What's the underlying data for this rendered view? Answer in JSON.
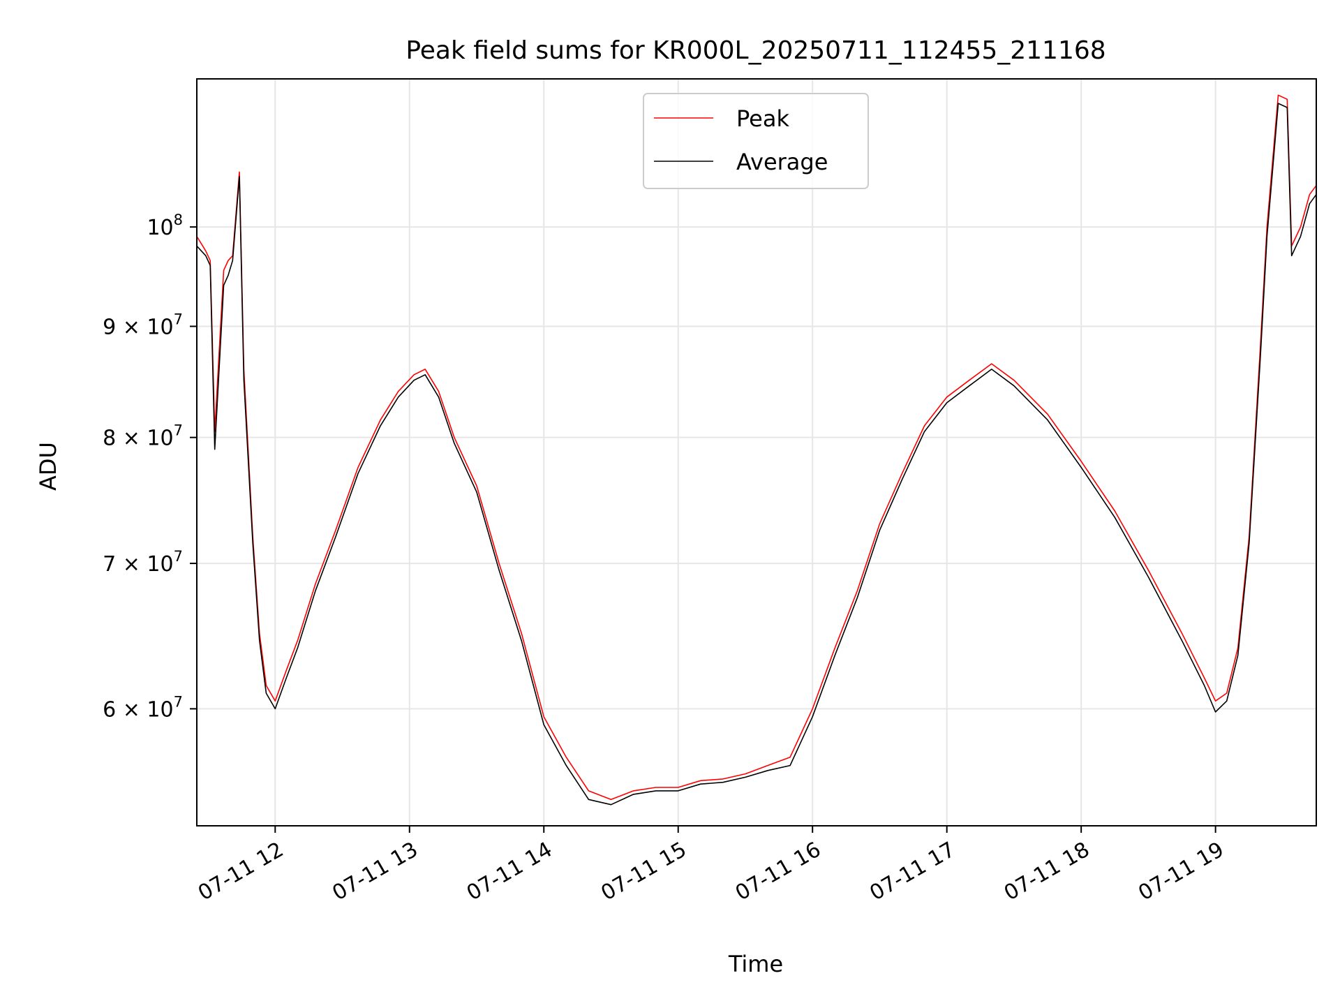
{
  "chart_data": {
    "type": "line",
    "title": "Peak field sums for KR000L_20250711_112455_211168",
    "xlabel": "Time",
    "ylabel": "ADU",
    "yscale": "log",
    "xlim": [
      "2025-07-11 11:25",
      "2025-07-11 19:45"
    ],
    "ylim": [
      53000000,
      117000000
    ],
    "grid": true,
    "legend": "upper center",
    "x_ticks": [
      {
        "t": "2025-07-11 12:00",
        "label": "07-11 12"
      },
      {
        "t": "2025-07-11 13:00",
        "label": "07-11 13"
      },
      {
        "t": "2025-07-11 14:00",
        "label": "07-11 14"
      },
      {
        "t": "2025-07-11 15:00",
        "label": "07-11 15"
      },
      {
        "t": "2025-07-11 16:00",
        "label": "07-11 16"
      },
      {
        "t": "2025-07-11 17:00",
        "label": "07-11 17"
      },
      {
        "t": "2025-07-11 18:00",
        "label": "07-11 18"
      },
      {
        "t": "2025-07-11 19:00",
        "label": "07-11 19"
      }
    ],
    "y_ticks": [
      {
        "value": 60000000,
        "mant": "6",
        "exp": "7"
      },
      {
        "value": 70000000,
        "mant": "7",
        "exp": "7"
      },
      {
        "value": 80000000,
        "mant": "8",
        "exp": "7"
      },
      {
        "value": 90000000,
        "mant": "9",
        "exp": "7"
      },
      {
        "value": 100000000,
        "mant": "",
        "exp": "8"
      }
    ],
    "series": [
      {
        "name": "Peak",
        "color": "#ff0000",
        "x": [
          "2025-07-11 11:25",
          "2025-07-11 11:29",
          "2025-07-11 11:31",
          "2025-07-11 11:33",
          "2025-07-11 11:37",
          "2025-07-11 11:39",
          "2025-07-11 11:41",
          "2025-07-11 11:44",
          "2025-07-11 11:46",
          "2025-07-11 11:50",
          "2025-07-11 11:53",
          "2025-07-11 11:56",
          "2025-07-11 12:00",
          "2025-07-11 12:05",
          "2025-07-11 12:10",
          "2025-07-11 12:18",
          "2025-07-11 12:27",
          "2025-07-11 12:37",
          "2025-07-11 12:47",
          "2025-07-11 12:55",
          "2025-07-11 13:02",
          "2025-07-11 13:07",
          "2025-07-11 13:13",
          "2025-07-11 13:20",
          "2025-07-11 13:30",
          "2025-07-11 13:40",
          "2025-07-11 13:50",
          "2025-07-11 14:00",
          "2025-07-11 14:10",
          "2025-07-11 14:20",
          "2025-07-11 14:30",
          "2025-07-11 14:40",
          "2025-07-11 14:50",
          "2025-07-11 15:00",
          "2025-07-11 15:10",
          "2025-07-11 15:20",
          "2025-07-11 15:30",
          "2025-07-11 15:40",
          "2025-07-11 15:50",
          "2025-07-11 16:00",
          "2025-07-11 16:10",
          "2025-07-11 16:20",
          "2025-07-11 16:30",
          "2025-07-11 16:40",
          "2025-07-11 16:50",
          "2025-07-11 17:00",
          "2025-07-11 17:10",
          "2025-07-11 17:20",
          "2025-07-11 17:30",
          "2025-07-11 17:45",
          "2025-07-11 18:00",
          "2025-07-11 18:15",
          "2025-07-11 18:30",
          "2025-07-11 18:45",
          "2025-07-11 18:55",
          "2025-07-11 19:00",
          "2025-07-11 19:05",
          "2025-07-11 19:10",
          "2025-07-11 19:15",
          "2025-07-11 19:20",
          "2025-07-11 19:23",
          "2025-07-11 19:28",
          "2025-07-11 19:32",
          "2025-07-11 19:34",
          "2025-07-11 19:38",
          "2025-07-11 19:42",
          "2025-07-11 19:45"
        ],
        "values": [
          99000000,
          97500000,
          96500000,
          80500000,
          95500000,
          96500000,
          97000000,
          106000000,
          86000000,
          72000000,
          65000000,
          61500000,
          60500000,
          62500000,
          64500000,
          68500000,
          72500000,
          77500000,
          81500000,
          84000000,
          85500000,
          86000000,
          84000000,
          80000000,
          76000000,
          70000000,
          65000000,
          59500000,
          57000000,
          55000000,
          54500000,
          55000000,
          55200000,
          55200000,
          55600000,
          55700000,
          56000000,
          56500000,
          57000000,
          60000000,
          64000000,
          68000000,
          73000000,
          77000000,
          81000000,
          83500000,
          85000000,
          86500000,
          85000000,
          82000000,
          78000000,
          74000000,
          69500000,
          65000000,
          62000000,
          60500000,
          61000000,
          64000000,
          72000000,
          88000000,
          100000000,
          115000000,
          114500000,
          98000000,
          100000000,
          103500000,
          104500000
        ]
      },
      {
        "name": "Average",
        "color": "#000000",
        "x": [
          "2025-07-11 11:25",
          "2025-07-11 11:29",
          "2025-07-11 11:31",
          "2025-07-11 11:33",
          "2025-07-11 11:37",
          "2025-07-11 11:39",
          "2025-07-11 11:41",
          "2025-07-11 11:44",
          "2025-07-11 11:46",
          "2025-07-11 11:50",
          "2025-07-11 11:53",
          "2025-07-11 11:56",
          "2025-07-11 12:00",
          "2025-07-11 12:05",
          "2025-07-11 12:10",
          "2025-07-11 12:18",
          "2025-07-11 12:27",
          "2025-07-11 12:37",
          "2025-07-11 12:47",
          "2025-07-11 12:55",
          "2025-07-11 13:02",
          "2025-07-11 13:07",
          "2025-07-11 13:13",
          "2025-07-11 13:20",
          "2025-07-11 13:30",
          "2025-07-11 13:40",
          "2025-07-11 13:50",
          "2025-07-11 14:00",
          "2025-07-11 14:10",
          "2025-07-11 14:20",
          "2025-07-11 14:30",
          "2025-07-11 14:40",
          "2025-07-11 14:50",
          "2025-07-11 15:00",
          "2025-07-11 15:10",
          "2025-07-11 15:20",
          "2025-07-11 15:30",
          "2025-07-11 15:40",
          "2025-07-11 15:50",
          "2025-07-11 16:00",
          "2025-07-11 16:10",
          "2025-07-11 16:20",
          "2025-07-11 16:30",
          "2025-07-11 16:40",
          "2025-07-11 16:50",
          "2025-07-11 17:00",
          "2025-07-11 17:10",
          "2025-07-11 17:20",
          "2025-07-11 17:30",
          "2025-07-11 17:45",
          "2025-07-11 18:00",
          "2025-07-11 18:15",
          "2025-07-11 18:30",
          "2025-07-11 18:45",
          "2025-07-11 18:55",
          "2025-07-11 19:00",
          "2025-07-11 19:05",
          "2025-07-11 19:10",
          "2025-07-11 19:15",
          "2025-07-11 19:20",
          "2025-07-11 19:23",
          "2025-07-11 19:28",
          "2025-07-11 19:32",
          "2025-07-11 19:34",
          "2025-07-11 19:38",
          "2025-07-11 19:42",
          "2025-07-11 19:45"
        ],
        "values": [
          98000000,
          97000000,
          96000000,
          79000000,
          94000000,
          95000000,
          96500000,
          105500000,
          85000000,
          71500000,
          64500000,
          61000000,
          60000000,
          62000000,
          64000000,
          68000000,
          72000000,
          77000000,
          81000000,
          83500000,
          85000000,
          85500000,
          83500000,
          79500000,
          75500000,
          69500000,
          64500000,
          59000000,
          56500000,
          54500000,
          54200000,
          54800000,
          55000000,
          55000000,
          55400000,
          55500000,
          55800000,
          56200000,
          56500000,
          59500000,
          63500000,
          67500000,
          72500000,
          76500000,
          80500000,
          83000000,
          84500000,
          86000000,
          84500000,
          81500000,
          77500000,
          73500000,
          69000000,
          64500000,
          61500000,
          59800000,
          60500000,
          63500000,
          71500000,
          87000000,
          99000000,
          114000000,
          113500000,
          97000000,
          99000000,
          102500000,
          103500000
        ]
      }
    ]
  }
}
